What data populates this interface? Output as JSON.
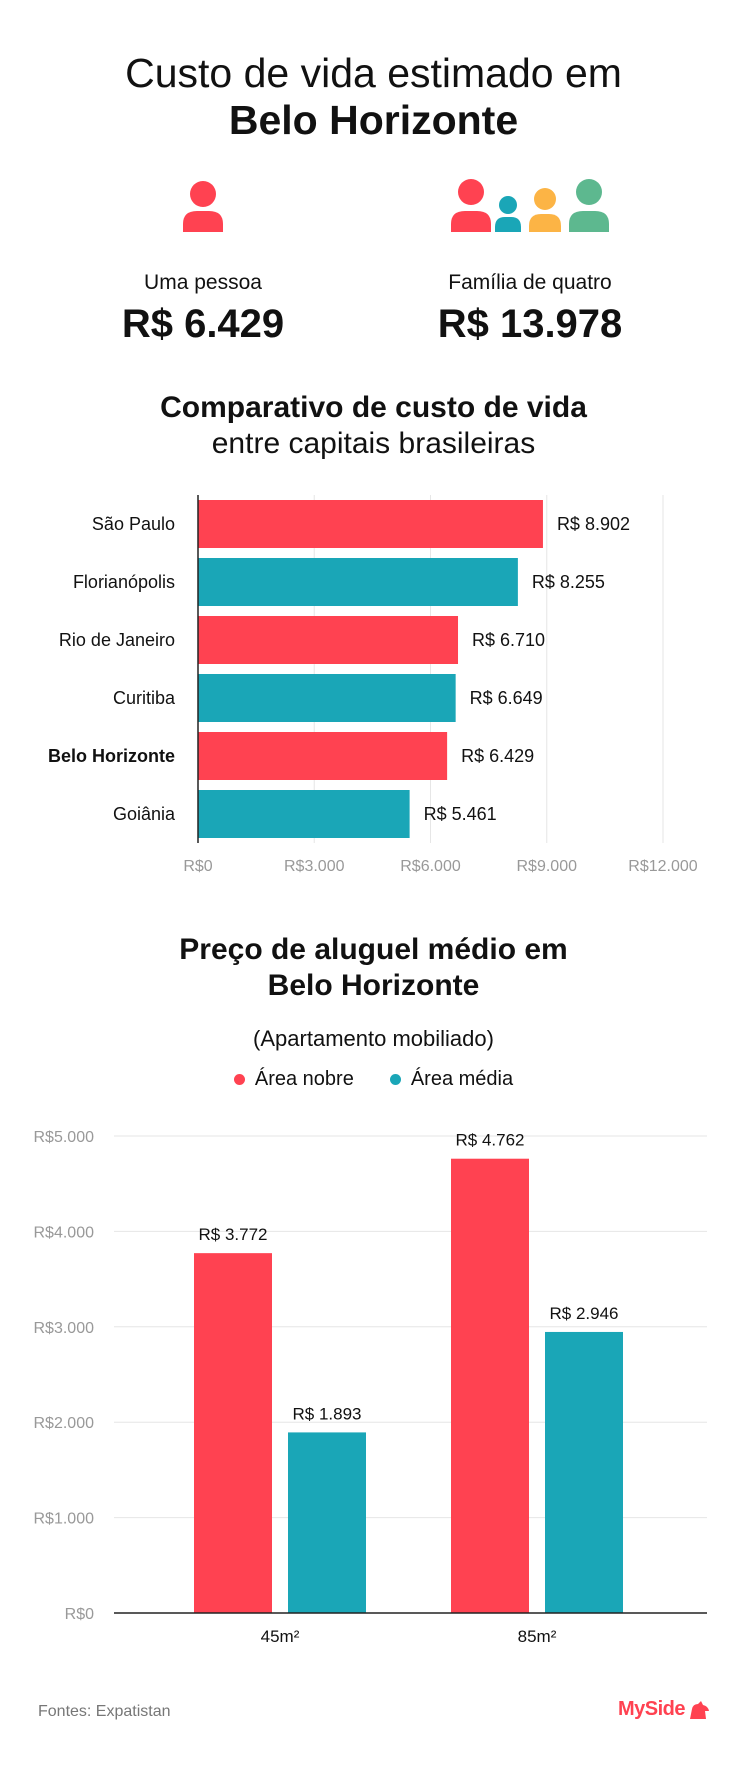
{
  "header": {
    "title_line1": "Custo de vida estimado em",
    "title_line2": "Belo Horizonte"
  },
  "cost_summary": {
    "single": {
      "label": "Uma pessoa",
      "value": "R$ 6.429",
      "icon": "person-icon"
    },
    "family": {
      "label": "Família de quatro",
      "value": "R$ 13.978",
      "icon": "family-icon"
    }
  },
  "comparison": {
    "title_bold": "Comparativo de custo de vida",
    "title_normal": "entre capitais brasileiras"
  },
  "rent": {
    "title_line1": "Preço de aluguel médio em",
    "title_line2": "Belo Horizonte",
    "subtitle": "(Apartamento mobiliado)"
  },
  "footer": {
    "source": "Fontes: Expatistan",
    "brand": "MySide"
  },
  "colors": {
    "red": "#ff4251",
    "teal": "#1aa6b7",
    "yellow": "#fcb445",
    "green": "#5db88f",
    "grid": "#e6e6e6",
    "axis": "#222222",
    "tick": "#999999"
  },
  "chart_data": [
    {
      "type": "bar",
      "orientation": "horizontal",
      "categories": [
        "São Paulo",
        "Florianópolis",
        "Rio de Janeiro",
        "Curitiba",
        "Belo Horizonte",
        "Goiânia"
      ],
      "values": [
        8902,
        8255,
        6710,
        6649,
        6429,
        5461
      ],
      "value_labels": [
        "R$ 8.902",
        "R$ 8.255",
        "R$ 6.710",
        "R$ 6.649",
        "R$ 6.429",
        "R$ 5.461"
      ],
      "bar_colors": [
        "red",
        "teal",
        "red",
        "teal",
        "red",
        "teal"
      ],
      "highlight": "Belo Horizonte",
      "xlim": [
        0,
        12000
      ],
      "xticks": [
        0,
        3000,
        6000,
        9000,
        12000
      ],
      "xtick_labels": [
        "R$0",
        "R$3.000",
        "R$6.000",
        "R$9.000",
        "R$12.000"
      ],
      "grid": true
    },
    {
      "type": "bar",
      "orientation": "vertical",
      "categories": [
        "45m²",
        "85m²"
      ],
      "series": [
        {
          "name": "Área nobre",
          "color": "red",
          "values": [
            3772,
            4762
          ],
          "labels": [
            "R$ 3.772",
            "R$ 4.762"
          ]
        },
        {
          "name": "Área média",
          "color": "teal",
          "values": [
            1893,
            2946
          ],
          "labels": [
            "R$ 1.893",
            "R$ 2.946"
          ]
        }
      ],
      "ylim": [
        0,
        5000
      ],
      "yticks": [
        0,
        1000,
        2000,
        3000,
        4000,
        5000
      ],
      "ytick_labels": [
        "R$0",
        "R$1.000",
        "R$2.000",
        "R$3.000",
        "R$4.000",
        "R$5.000"
      ],
      "legend_position": "top-center",
      "grid": true
    }
  ]
}
